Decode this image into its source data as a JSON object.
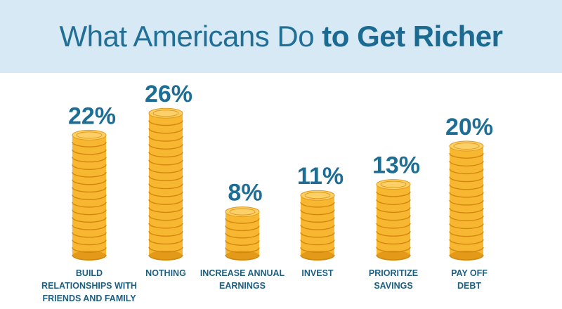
{
  "header": {
    "title_light": "What Americans Do ",
    "title_bold": "to Get Richer"
  },
  "chart_data": {
    "type": "bar",
    "title": "What Americans Do to Get Richer",
    "categories": [
      "BUILD RELATIONSHIPS WITH FRIENDS AND FAMILY",
      "NOTHING",
      "INCREASE ANNUAL EARNINGS",
      "INVEST",
      "PRIORITIZE SAVINGS",
      "PAY OFF DEBT"
    ],
    "category_lines": [
      [
        "BUILD",
        "RELATIONSHIPS WITH",
        "FRIENDS AND FAMILY"
      ],
      [
        "NOTHING"
      ],
      [
        "INCREASE ANNUAL",
        "EARNINGS"
      ],
      [
        "INVEST"
      ],
      [
        "PRIORITIZE",
        "SAVINGS"
      ],
      [
        "PAY OFF",
        "DEBT"
      ]
    ],
    "values": [
      22,
      26,
      8,
      11,
      13,
      20
    ],
    "value_labels": [
      "22%",
      "26%",
      "8%",
      "11%",
      "13%",
      "20%"
    ],
    "xlabel": "",
    "ylabel": "",
    "grid": false,
    "colors": {
      "coin_face": "#f7b731",
      "coin_top": "#fcd069",
      "coin_edge": "#e39a18",
      "coin_line": "#d4870f",
      "label": "#1e6d95",
      "header_bg": "#d7e9f4"
    }
  }
}
